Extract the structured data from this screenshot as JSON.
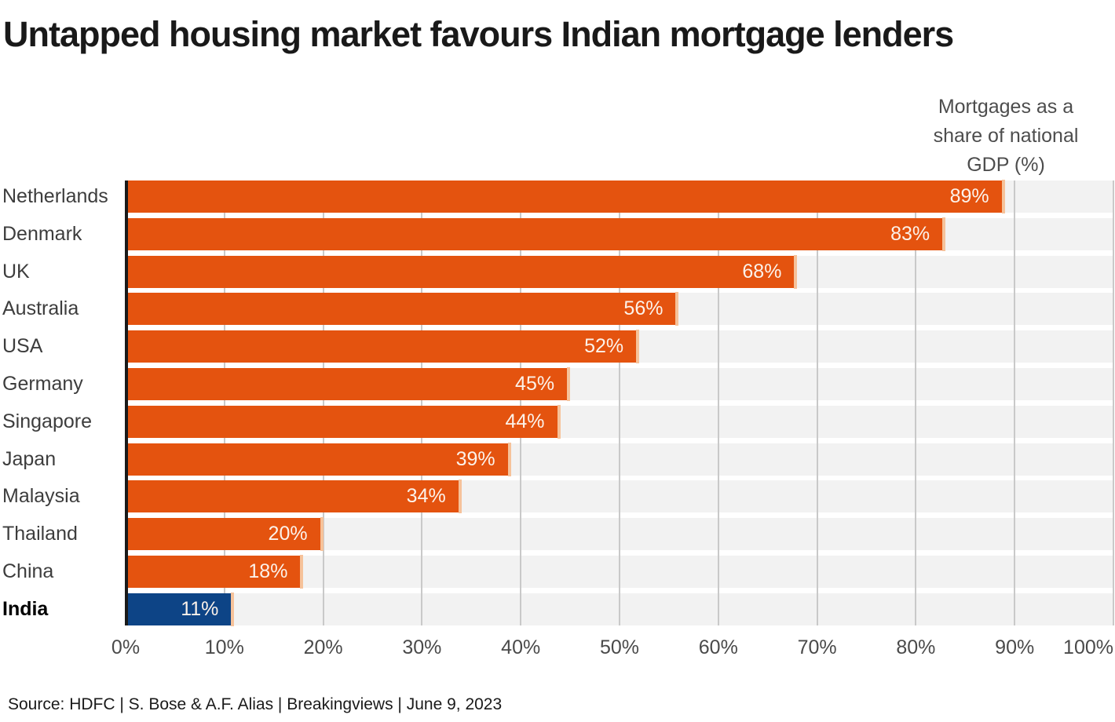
{
  "title": "Untapped housing market favours Indian mortgage lenders",
  "subtitle": {
    "lines": [
      "Mortgages as a",
      "share of national",
      "GDP (%)"
    ]
  },
  "source": "Source: HDFC | S. Bose & A.F. Alias | Breakingviews | June 9, 2023",
  "colors": {
    "bar_orange": "#e4530f",
    "bar_highlight_blue": "#0d4486",
    "bar_cap": "#f6c29a",
    "track_gray": "#f2f2f2",
    "gridline_gray": "#c9c9c9",
    "axis_black": "#1a1a1a",
    "value_text": "#fcf2ea"
  },
  "chart_data": {
    "type": "bar",
    "orientation": "horizontal",
    "title": "Untapped housing market favours Indian mortgage lenders",
    "axis_title": "Mortgages as a share of national GDP (%)",
    "categories": [
      "Netherlands",
      "Denmark",
      "UK",
      "Australia",
      "USA",
      "Germany",
      "Singapore",
      "Japan",
      "Malaysia",
      "Thailand",
      "China",
      "India"
    ],
    "values": [
      89,
      83,
      68,
      56,
      52,
      45,
      44,
      39,
      34,
      20,
      18,
      11
    ],
    "value_labels": [
      "89%",
      "83%",
      "68%",
      "56%",
      "52%",
      "45%",
      "44%",
      "39%",
      "34%",
      "20%",
      "18%",
      "11%"
    ],
    "highlight_category": "India",
    "xlabel": "",
    "ylabel": "",
    "xlim": [
      0,
      100
    ],
    "x_ticks": [
      "0%",
      "10%",
      "20%",
      "30%",
      "40%",
      "50%",
      "60%",
      "70%",
      "80%",
      "90%",
      "100%"
    ],
    "grid": "vertical",
    "legend": "none"
  }
}
